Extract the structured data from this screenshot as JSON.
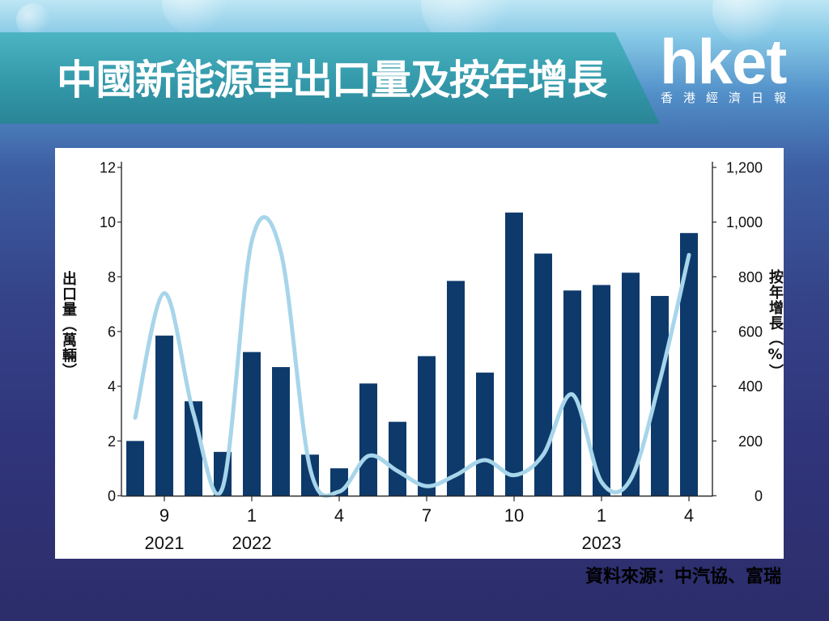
{
  "title": "中國新能源車出口量及按年增長",
  "logo": {
    "brand": "hket",
    "tagline": "香港經濟日報"
  },
  "source": "資料來源：中汽協、富瑞",
  "colors": {
    "background": "#2f3274",
    "title_band": "#3399aa",
    "bar": "#0e3a6b",
    "line": "#a7d5ea",
    "axis": "#2b2b2b",
    "panel": "#ffffff"
  },
  "chart_data": {
    "type": "bar",
    "categories": [
      "",
      "9",
      "",
      "",
      "1",
      "",
      "",
      "4",
      "",
      "",
      "7",
      "",
      "",
      "10",
      "",
      "",
      "1",
      "",
      "",
      "4"
    ],
    "category_years": [
      "",
      "2021",
      "",
      "",
      "2022",
      "",
      "",
      "",
      "",
      "",
      "",
      "",
      "",
      "",
      "",
      "",
      "2023",
      "",
      "",
      ""
    ],
    "series": [
      {
        "type": "bar",
        "axis": "left",
        "values": [
          2.0,
          5.85,
          3.45,
          1.6,
          5.25,
          4.7,
          1.5,
          1.0,
          4.1,
          2.7,
          5.1,
          7.85,
          4.5,
          10.35,
          8.85,
          7.5,
          7.7,
          8.15,
          7.3,
          9.6
        ]
      },
      {
        "type": "line",
        "axis": "right",
        "smooth": true,
        "values": [
          285,
          740,
          300,
          30,
          930,
          890,
          100,
          15,
          145,
          90,
          35,
          75,
          130,
          75,
          150,
          370,
          50,
          60,
          420,
          880
        ]
      }
    ],
    "ylabel": "出口量（萬輛）",
    "y2label": "按年增長（%）",
    "ylim": [
      0,
      12
    ],
    "y2lim": [
      0,
      1200
    ],
    "y_tick_labels": [
      "0",
      "2",
      "4",
      "6",
      "8",
      "10",
      "12"
    ],
    "y2_tick_labels": [
      "0",
      "200",
      "400",
      "600",
      "800",
      "1,000",
      "1,200"
    ],
    "grid": false,
    "legend": "none"
  }
}
